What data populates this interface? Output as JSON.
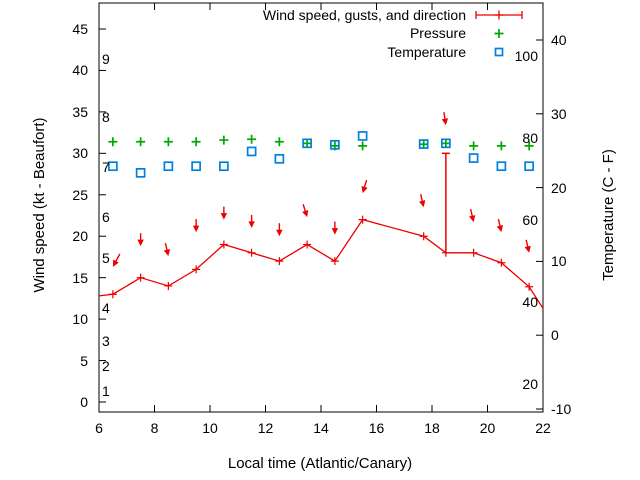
{
  "chart_data": {
    "type": "line",
    "title": "",
    "legend": {
      "wind": "Wind speed, gusts, and direction",
      "pressure": "Pressure",
      "temperature": "Temperature"
    },
    "xlabel": "Local time (Atlantic/Canary)",
    "ylabel": "Wind speed (kt - Beaufort)",
    "y2label": "Temperature (C - F)",
    "x_ticks": [
      6,
      8,
      10,
      12,
      14,
      16,
      18,
      20,
      22
    ],
    "xlim": [
      6,
      22
    ],
    "y_ticks_kt": [
      0,
      5,
      10,
      15,
      20,
      25,
      30,
      35,
      40,
      45
    ],
    "ylim_kt": [
      -1.2,
      48.1
    ],
    "y2_ticks_c": [
      40,
      30,
      20,
      10,
      0,
      -10
    ],
    "y2lim_c": [
      -10.5,
      45
    ],
    "fahrenheit_inner_labels": [
      100,
      80,
      60,
      40,
      20
    ],
    "beaufort_inner_labels": [
      {
        "bft": "1",
        "kt": 1
      },
      {
        "bft": "2",
        "kt": 4
      },
      {
        "bft": "3",
        "kt": 7
      },
      {
        "bft": "4",
        "kt": 11
      },
      {
        "bft": "5",
        "kt": 17
      },
      {
        "bft": "6",
        "kt": 22
      },
      {
        "bft": "7",
        "kt": 28
      },
      {
        "bft": "8",
        "kt": 34
      },
      {
        "bft": "9",
        "kt": 41
      }
    ],
    "colors": {
      "wind": "#ee0000",
      "pressure": "#00a800",
      "temperature": "#0080e0",
      "axis": "#000000"
    },
    "grid": false,
    "legend_position": "top-right-inside",
    "wind_speed_kt": [
      [
        6.0,
        12.8
      ],
      [
        6.5,
        13.0
      ],
      [
        7.5,
        15.0
      ],
      [
        8.5,
        14.0
      ],
      [
        9.5,
        16.0
      ],
      [
        10.5,
        19.0
      ],
      [
        11.5,
        18.0
      ],
      [
        12.5,
        17.0
      ],
      [
        13.5,
        19.0
      ],
      [
        14.5,
        17.0
      ],
      [
        15.5,
        22.0
      ],
      [
        17.7,
        20.0
      ],
      [
        18.5,
        18.0
      ],
      [
        19.5,
        18.0
      ],
      [
        20.5,
        16.8
      ],
      [
        21.5,
        13.9
      ],
      [
        22.0,
        11.3
      ]
    ],
    "gusts_kt": [
      {
        "t": 6.5,
        "kt": 16.3,
        "tilt": -7
      },
      {
        "t": 7.5,
        "kt": 18.8,
        "tilt": 0
      },
      {
        "t": 8.5,
        "kt": 17.6,
        "tilt": 3
      },
      {
        "t": 9.5,
        "kt": 20.5,
        "tilt": 0
      },
      {
        "t": 10.5,
        "kt": 22.0,
        "tilt": 0
      },
      {
        "t": 11.5,
        "kt": 21.0,
        "tilt": 0
      },
      {
        "t": 12.5,
        "kt": 20.0,
        "tilt": 0
      },
      {
        "t": 13.5,
        "kt": 22.3,
        "tilt": 4
      },
      {
        "t": 14.5,
        "kt": 20.2,
        "tilt": 0
      },
      {
        "t": 15.5,
        "kt": 25.2,
        "tilt": -4
      },
      {
        "t": 17.7,
        "kt": 23.5,
        "tilt": 3
      },
      {
        "t": 18.5,
        "kt": 33.4,
        "tilt": 2
      },
      {
        "t": 19.5,
        "kt": 21.7,
        "tilt": 3
      },
      {
        "t": 20.5,
        "kt": 20.5,
        "tilt": 3
      },
      {
        "t": 21.5,
        "kt": 18.0,
        "tilt": 3
      }
    ],
    "gust_bar": {
      "t": 18.5,
      "from_kt": 18.0,
      "to_kt": 30.0
    },
    "pressure_plot_kt_axis": [
      [
        6.5,
        31.4
      ],
      [
        7.5,
        31.4
      ],
      [
        8.5,
        31.4
      ],
      [
        9.5,
        31.4
      ],
      [
        10.5,
        31.6
      ],
      [
        11.5,
        31.7
      ],
      [
        12.5,
        31.4
      ],
      [
        13.5,
        31.2
      ],
      [
        14.5,
        30.9
      ],
      [
        15.5,
        30.9
      ],
      [
        17.7,
        31.1
      ],
      [
        18.5,
        31.2
      ],
      [
        19.5,
        30.9
      ],
      [
        20.5,
        30.9
      ],
      [
        21.5,
        30.9
      ]
    ],
    "temperature_c": [
      [
        6.5,
        22.9
      ],
      [
        7.5,
        22.0
      ],
      [
        8.5,
        22.9
      ],
      [
        9.5,
        22.9
      ],
      [
        10.5,
        22.9
      ],
      [
        11.5,
        24.9
      ],
      [
        12.5,
        23.9
      ],
      [
        13.5,
        26.0
      ],
      [
        14.5,
        25.8
      ],
      [
        15.5,
        27.0
      ],
      [
        17.7,
        25.9
      ],
      [
        18.5,
        26.0
      ],
      [
        19.5,
        24.0
      ],
      [
        20.5,
        22.9
      ],
      [
        21.5,
        22.9
      ]
    ]
  }
}
